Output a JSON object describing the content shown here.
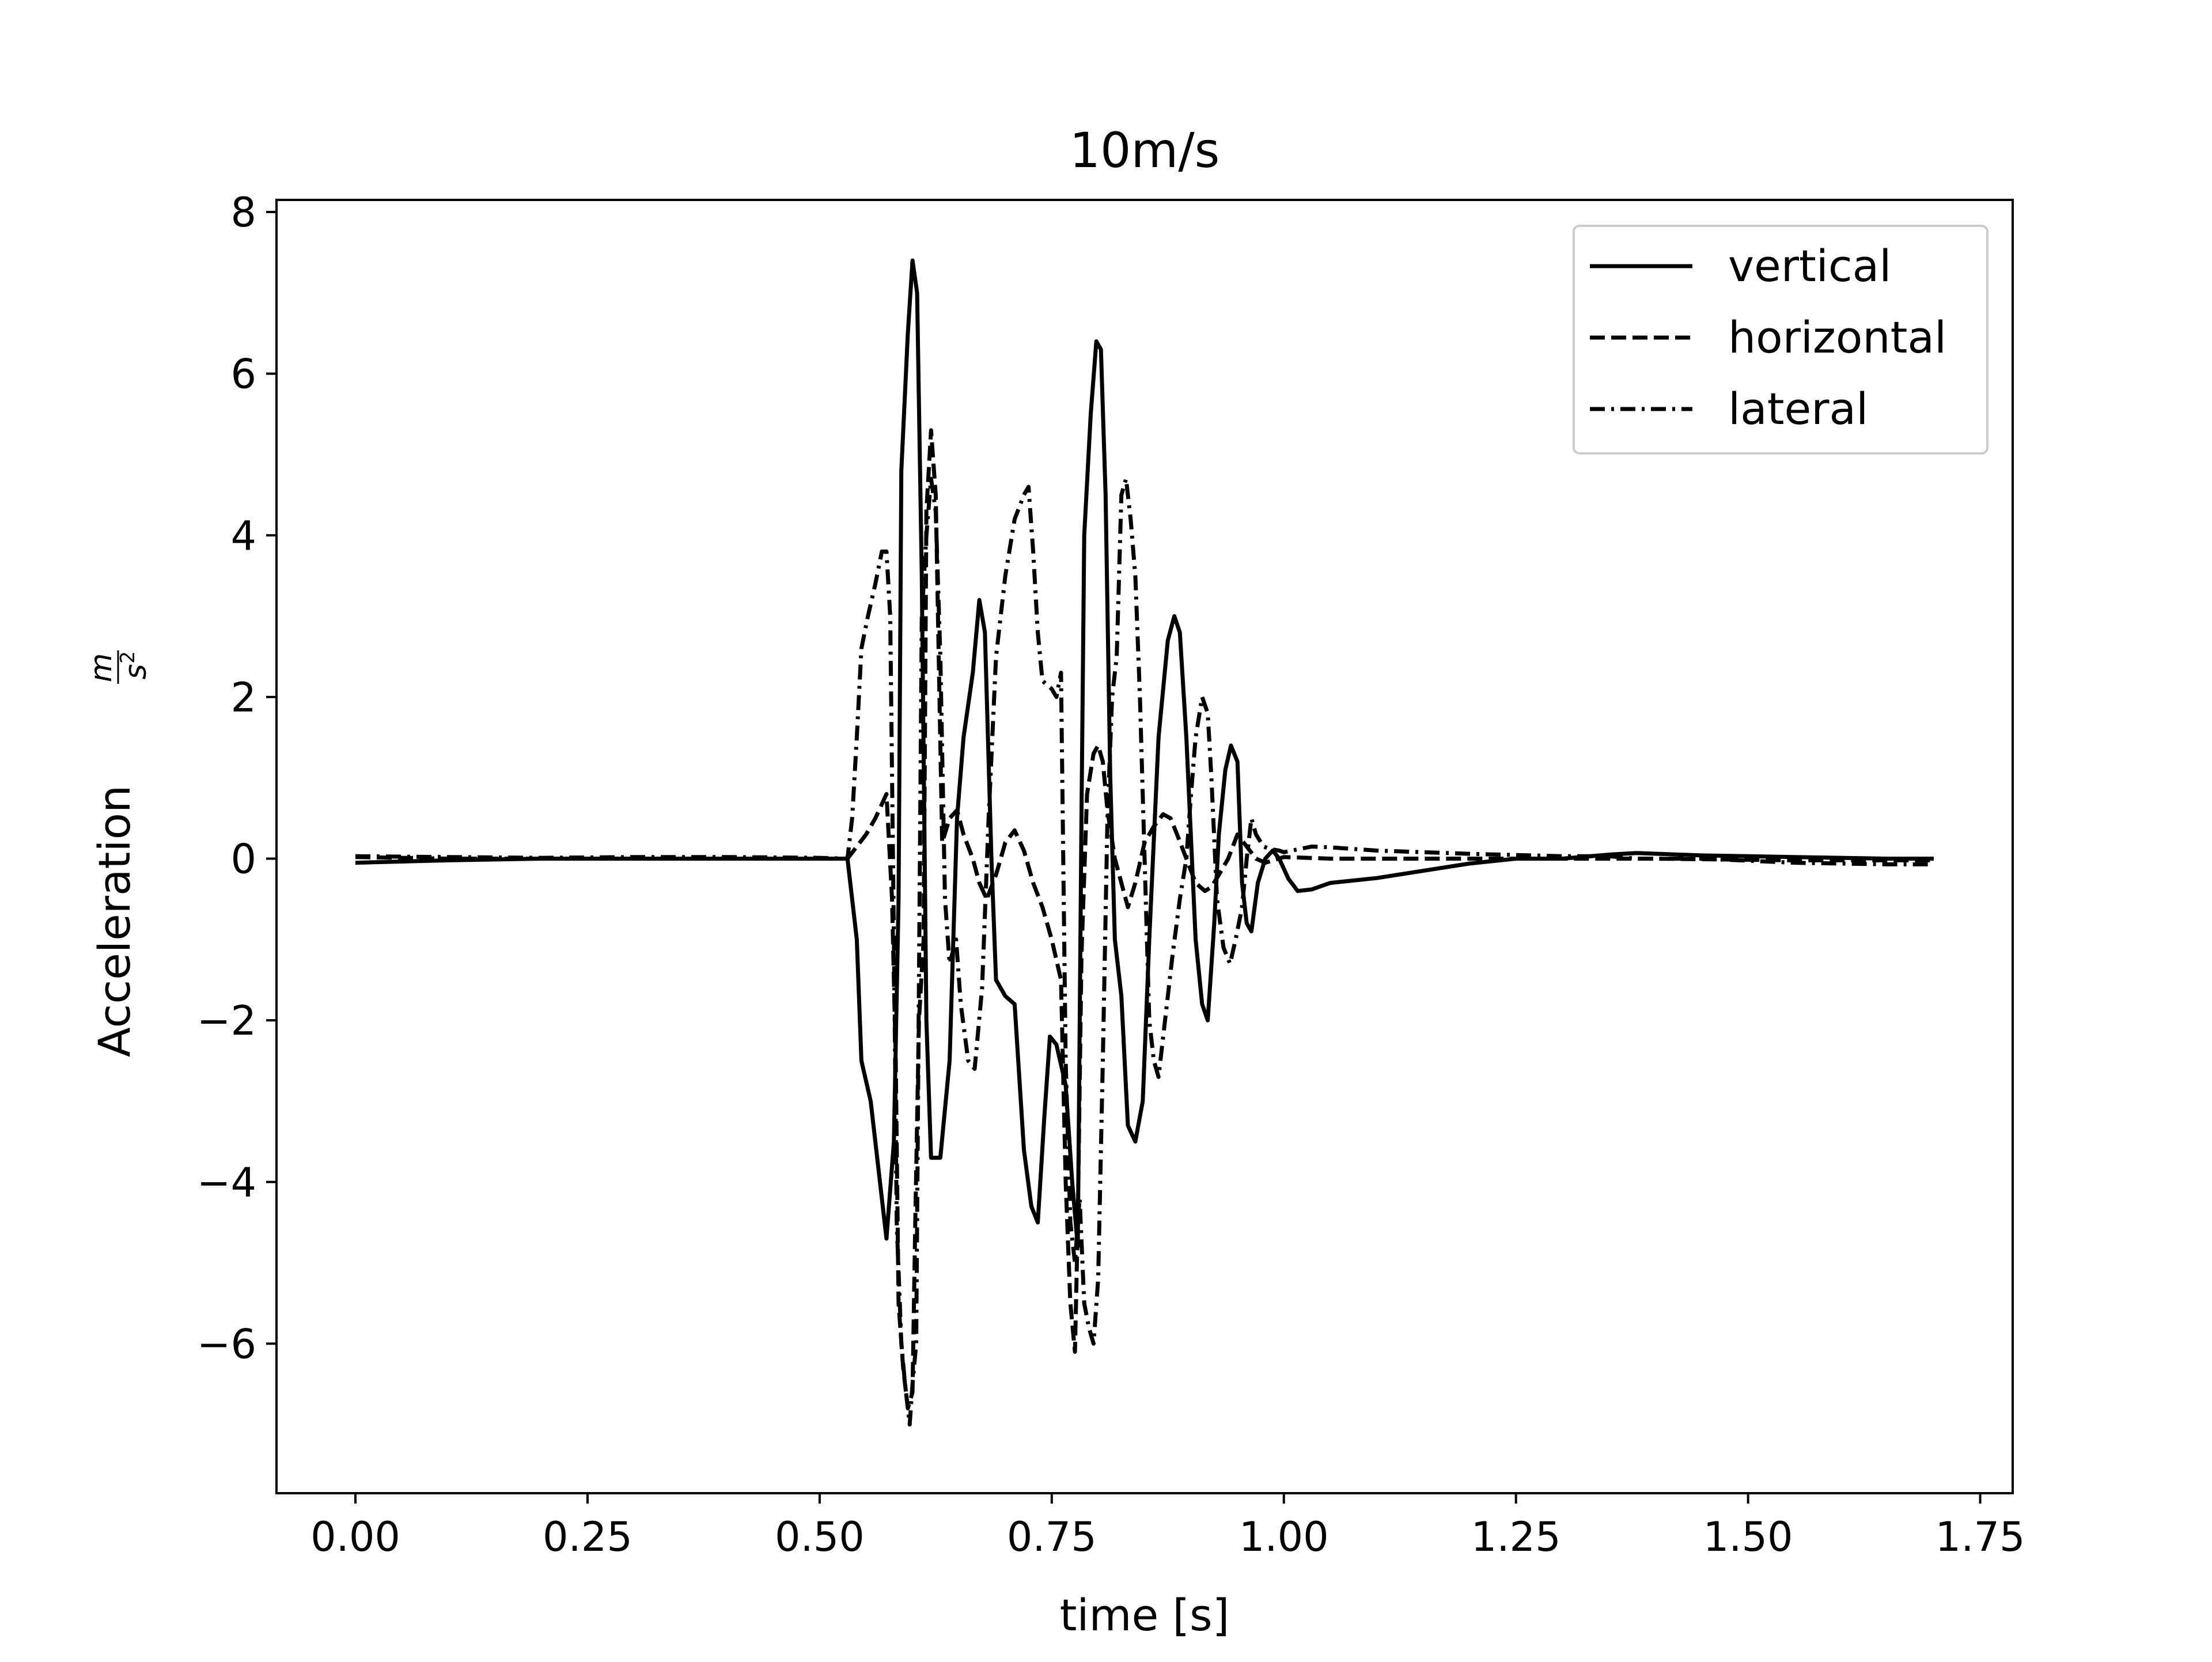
{
  "chart_data": {
    "type": "line",
    "title": "10m/s",
    "xlabel": "time [s]",
    "ylabel": "Acceleration m/s²",
    "ylabel_parts": {
      "text": "Acceleration",
      "num": "m",
      "den": "s",
      "exp": "2"
    },
    "xlim": [
      -0.085,
      1.785
    ],
    "ylim": [
      -7.85,
      8.15
    ],
    "xticks": [
      0.0,
      0.25,
      0.5,
      0.75,
      1.0,
      1.25,
      1.5,
      1.75
    ],
    "xtick_labels": [
      "0.00",
      "0.25",
      "0.50",
      "0.75",
      "1.00",
      "1.25",
      "1.50",
      "1.75"
    ],
    "yticks": [
      -6,
      -4,
      -2,
      0,
      2,
      4,
      6,
      8
    ],
    "ytick_labels": [
      "−6",
      "−4",
      "−2",
      "0",
      "2",
      "4",
      "6",
      "8"
    ],
    "grid": false,
    "legend_position": "top-right",
    "series": [
      {
        "name": "vertical",
        "style": "solid",
        "color": "#000000",
        "points": [
          [
            0.0,
            -0.05
          ],
          [
            0.1,
            -0.02
          ],
          [
            0.2,
            0.0
          ],
          [
            0.3,
            0.0
          ],
          [
            0.4,
            0.0
          ],
          [
            0.5,
            0.0
          ],
          [
            0.53,
            0.0
          ],
          [
            0.54,
            -1.0
          ],
          [
            0.545,
            -2.5
          ],
          [
            0.555,
            -3.0
          ],
          [
            0.565,
            -4.0
          ],
          [
            0.572,
            -4.7
          ],
          [
            0.58,
            -3.5
          ],
          [
            0.585,
            -0.5
          ],
          [
            0.588,
            4.8
          ],
          [
            0.595,
            6.5
          ],
          [
            0.6,
            7.4
          ],
          [
            0.605,
            7.0
          ],
          [
            0.61,
            3.5
          ],
          [
            0.615,
            -2.0
          ],
          [
            0.62,
            -3.7
          ],
          [
            0.63,
            -3.7
          ],
          [
            0.64,
            -2.5
          ],
          [
            0.648,
            0.5
          ],
          [
            0.655,
            1.5
          ],
          [
            0.665,
            2.3
          ],
          [
            0.672,
            3.2
          ],
          [
            0.678,
            2.8
          ],
          [
            0.685,
            0.0
          ],
          [
            0.69,
            -1.5
          ],
          [
            0.7,
            -1.7
          ],
          [
            0.71,
            -1.8
          ],
          [
            0.72,
            -3.6
          ],
          [
            0.728,
            -4.3
          ],
          [
            0.735,
            -4.5
          ],
          [
            0.742,
            -3.2
          ],
          [
            0.748,
            -2.2
          ],
          [
            0.755,
            -2.3
          ],
          [
            0.765,
            -2.8
          ],
          [
            0.772,
            -4.0
          ],
          [
            0.778,
            -4.8
          ],
          [
            0.782,
            0.5
          ],
          [
            0.785,
            4.0
          ],
          [
            0.792,
            5.5
          ],
          [
            0.798,
            6.4
          ],
          [
            0.803,
            6.3
          ],
          [
            0.808,
            4.5
          ],
          [
            0.813,
            1.0
          ],
          [
            0.818,
            -1.0
          ],
          [
            0.825,
            -1.7
          ],
          [
            0.832,
            -3.3
          ],
          [
            0.84,
            -3.5
          ],
          [
            0.848,
            -3.0
          ],
          [
            0.855,
            -1.0
          ],
          [
            0.865,
            1.5
          ],
          [
            0.875,
            2.7
          ],
          [
            0.882,
            3.0
          ],
          [
            0.888,
            2.8
          ],
          [
            0.895,
            1.5
          ],
          [
            0.905,
            -1.0
          ],
          [
            0.912,
            -1.8
          ],
          [
            0.918,
            -2.0
          ],
          [
            0.925,
            -0.8
          ],
          [
            0.93,
            0.3
          ],
          [
            0.937,
            1.1
          ],
          [
            0.943,
            1.4
          ],
          [
            0.95,
            1.2
          ],
          [
            0.955,
            -0.3
          ],
          [
            0.96,
            -0.8
          ],
          [
            0.965,
            -0.9
          ],
          [
            0.972,
            -0.3
          ],
          [
            0.98,
            0.0
          ],
          [
            0.988,
            0.1
          ],
          [
            0.995,
            0.0
          ],
          [
            1.005,
            -0.25
          ],
          [
            1.015,
            -0.4
          ],
          [
            1.03,
            -0.38
          ],
          [
            1.05,
            -0.3
          ],
          [
            1.1,
            -0.24
          ],
          [
            1.15,
            -0.15
          ],
          [
            1.2,
            -0.06
          ],
          [
            1.25,
            0.0
          ],
          [
            1.3,
            0.0
          ],
          [
            1.35,
            0.05
          ],
          [
            1.38,
            0.07
          ],
          [
            1.45,
            0.04
          ],
          [
            1.55,
            0.02
          ],
          [
            1.65,
            0.0
          ],
          [
            1.7,
            0.0
          ]
        ]
      },
      {
        "name": "horizontal",
        "style": "dashed",
        "color": "#000000",
        "points": [
          [
            0.0,
            0.02
          ],
          [
            0.1,
            0.0
          ],
          [
            0.3,
            0.0
          ],
          [
            0.5,
            0.0
          ],
          [
            0.53,
            0.0
          ],
          [
            0.54,
            0.15
          ],
          [
            0.55,
            0.3
          ],
          [
            0.56,
            0.5
          ],
          [
            0.568,
            0.7
          ],
          [
            0.572,
            0.8
          ],
          [
            0.578,
            -0.5
          ],
          [
            0.582,
            -2.5
          ],
          [
            0.585,
            -5.5
          ],
          [
            0.59,
            -6.3
          ],
          [
            0.595,
            -6.8
          ],
          [
            0.6,
            -6.6
          ],
          [
            0.603,
            -4.5
          ],
          [
            0.607,
            -2.0
          ],
          [
            0.612,
            -1.0
          ],
          [
            0.615,
            4.3
          ],
          [
            0.62,
            5.3
          ],
          [
            0.625,
            4.5
          ],
          [
            0.632,
            0.2
          ],
          [
            0.64,
            0.5
          ],
          [
            0.648,
            0.6
          ],
          [
            0.655,
            0.3
          ],
          [
            0.665,
            0.0
          ],
          [
            0.672,
            -0.3
          ],
          [
            0.68,
            -0.5
          ],
          [
            0.69,
            -0.2
          ],
          [
            0.7,
            0.2
          ],
          [
            0.71,
            0.35
          ],
          [
            0.72,
            0.1
          ],
          [
            0.73,
            -0.3
          ],
          [
            0.74,
            -0.6
          ],
          [
            0.75,
            -1.0
          ],
          [
            0.76,
            -1.5
          ],
          [
            0.765,
            -4.0
          ],
          [
            0.77,
            -5.5
          ],
          [
            0.775,
            -6.1
          ],
          [
            0.778,
            -4.5
          ],
          [
            0.782,
            -1.2
          ],
          [
            0.788,
            0.8
          ],
          [
            0.795,
            1.3
          ],
          [
            0.8,
            1.4
          ],
          [
            0.805,
            1.2
          ],
          [
            0.81,
            0.6
          ],
          [
            0.818,
            0.0
          ],
          [
            0.825,
            -0.3
          ],
          [
            0.832,
            -0.6
          ],
          [
            0.84,
            -0.3
          ],
          [
            0.85,
            0.2
          ],
          [
            0.86,
            0.4
          ],
          [
            0.87,
            0.55
          ],
          [
            0.878,
            0.5
          ],
          [
            0.885,
            0.3
          ],
          [
            0.895,
            0.0
          ],
          [
            0.905,
            -0.3
          ],
          [
            0.915,
            -0.4
          ],
          [
            0.922,
            -0.35
          ],
          [
            0.93,
            -0.2
          ],
          [
            0.94,
            0.0
          ],
          [
            0.95,
            0.3
          ],
          [
            0.96,
            0.15
          ],
          [
            0.97,
            0.0
          ],
          [
            0.98,
            -0.05
          ],
          [
            1.0,
            0.02
          ],
          [
            1.05,
            0.0
          ],
          [
            1.2,
            0.0
          ],
          [
            1.4,
            0.0
          ],
          [
            1.55,
            -0.02
          ],
          [
            1.7,
            -0.02
          ]
        ]
      },
      {
        "name": "lateral",
        "style": "dashdot",
        "color": "#000000",
        "points": [
          [
            0.0,
            0.03
          ],
          [
            0.1,
            0.02
          ],
          [
            0.2,
            0.01
          ],
          [
            0.3,
            0.02
          ],
          [
            0.4,
            0.02
          ],
          [
            0.5,
            0.01
          ],
          [
            0.53,
            0.0
          ],
          [
            0.535,
            0.5
          ],
          [
            0.54,
            1.5
          ],
          [
            0.545,
            2.6
          ],
          [
            0.552,
            3.0
          ],
          [
            0.56,
            3.4
          ],
          [
            0.567,
            3.8
          ],
          [
            0.572,
            3.8
          ],
          [
            0.576,
            3.0
          ],
          [
            0.58,
            -1.0
          ],
          [
            0.583,
            -4.5
          ],
          [
            0.588,
            -6.0
          ],
          [
            0.592,
            -6.5
          ],
          [
            0.597,
            -7.0
          ],
          [
            0.6,
            -6.5
          ],
          [
            0.604,
            -6.0
          ],
          [
            0.607,
            -1.5
          ],
          [
            0.61,
            3.0
          ],
          [
            0.615,
            4.0
          ],
          [
            0.62,
            4.7
          ],
          [
            0.625,
            4.3
          ],
          [
            0.63,
            2.5
          ],
          [
            0.635,
            -0.5
          ],
          [
            0.64,
            -1.3
          ],
          [
            0.647,
            -1.0
          ],
          [
            0.652,
            -1.8
          ],
          [
            0.66,
            -2.5
          ],
          [
            0.667,
            -2.6
          ],
          [
            0.675,
            -1.6
          ],
          [
            0.682,
            0.5
          ],
          [
            0.69,
            2.5
          ],
          [
            0.7,
            3.5
          ],
          [
            0.71,
            4.2
          ],
          [
            0.72,
            4.5
          ],
          [
            0.725,
            4.6
          ],
          [
            0.73,
            3.8
          ],
          [
            0.735,
            2.8
          ],
          [
            0.74,
            2.2
          ],
          [
            0.75,
            2.1
          ],
          [
            0.755,
            2.0
          ],
          [
            0.76,
            2.3
          ],
          [
            0.765,
            -2.5
          ],
          [
            0.77,
            -4.5
          ],
          [
            0.775,
            -5.0
          ],
          [
            0.78,
            -4.2
          ],
          [
            0.785,
            -5.5
          ],
          [
            0.79,
            -5.8
          ],
          [
            0.795,
            -6.0
          ],
          [
            0.8,
            -5.2
          ],
          [
            0.805,
            -2.5
          ],
          [
            0.81,
            0.5
          ],
          [
            0.815,
            2.0
          ],
          [
            0.82,
            2.5
          ],
          [
            0.825,
            4.5
          ],
          [
            0.83,
            4.7
          ],
          [
            0.835,
            4.2
          ],
          [
            0.84,
            3.5
          ],
          [
            0.845,
            2.0
          ],
          [
            0.85,
            0.0
          ],
          [
            0.855,
            -2.0
          ],
          [
            0.86,
            -2.5
          ],
          [
            0.865,
            -2.7
          ],
          [
            0.872,
            -2.0
          ],
          [
            0.88,
            -1.2
          ],
          [
            0.888,
            -0.5
          ],
          [
            0.895,
            0.0
          ],
          [
            0.9,
            0.8
          ],
          [
            0.905,
            1.5
          ],
          [
            0.912,
            2.0
          ],
          [
            0.918,
            1.8
          ],
          [
            0.922,
            1.0
          ],
          [
            0.928,
            -0.5
          ],
          [
            0.935,
            -1.1
          ],
          [
            0.942,
            -1.3
          ],
          [
            0.948,
            -1.0
          ],
          [
            0.955,
            -0.6
          ],
          [
            0.96,
            0.0
          ],
          [
            0.965,
            0.5
          ],
          [
            0.97,
            0.3
          ],
          [
            0.978,
            0.15
          ],
          [
            0.985,
            0.12
          ],
          [
            0.995,
            0.1
          ],
          [
            1.0,
            0.08
          ],
          [
            1.03,
            0.15
          ],
          [
            1.05,
            0.14
          ],
          [
            1.1,
            0.1
          ],
          [
            1.2,
            0.06
          ],
          [
            1.3,
            0.03
          ],
          [
            1.35,
            0.03
          ],
          [
            1.38,
            0.0
          ],
          [
            1.45,
            0.0
          ],
          [
            1.55,
            -0.05
          ],
          [
            1.65,
            -0.07
          ],
          [
            1.7,
            -0.07
          ]
        ]
      }
    ]
  }
}
